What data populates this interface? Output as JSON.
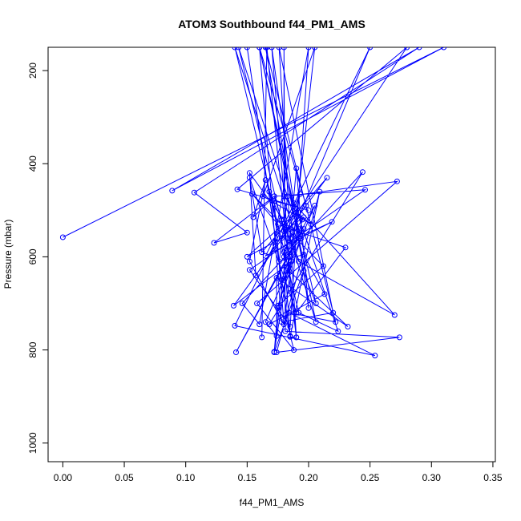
{
  "chart_data": {
    "type": "line",
    "title": "ATOM3 Southbound f44_PM1_AMS",
    "xlabel": "f44_PM1_AMS",
    "ylabel": "Pressure (mbar)",
    "xlim": [
      -0.012,
      0.352
    ],
    "ylim": [
      1040,
      150
    ],
    "y_reversed": true,
    "x_ticks": [
      0.0,
      0.05,
      0.1,
      0.15,
      0.2,
      0.25,
      0.3,
      0.35
    ],
    "x_tick_labels": [
      "0.00",
      "0.05",
      "0.10",
      "0.15",
      "0.20",
      "0.25",
      "0.30",
      "0.35"
    ],
    "y_ticks": [
      200,
      400,
      600,
      800,
      1000
    ],
    "y_tick_labels": [
      "200",
      "400",
      "600",
      "800",
      "1000"
    ],
    "grid": false,
    "series_color": "#0000FF",
    "marker": "open-circle",
    "series": [
      {
        "x": [
          0.0,
          0.31,
          0.089,
          0.29,
          0.107,
          0.15,
          0.123,
          0.172,
          0.155,
          0.165,
          0.152,
          0.18,
          0.172,
          0.2,
          0.142,
          0.28,
          0.157,
          0.152,
          0.185,
          0.23,
          0.19,
          0.152,
          0.162,
          0.215,
          0.178,
          0.15,
          0.19,
          0.202,
          0.163,
          0.205,
          0.181,
          0.188,
          0.158,
          0.272,
          0.183,
          0.176,
          0.196,
          0.213,
          0.168,
          0.244,
          0.146,
          0.16,
          0.2,
          0.185,
          0.152,
          0.246,
          0.172,
          0.178,
          0.186,
          0.139,
          0.198,
          0.16,
          0.206,
          0.18,
          0.165,
          0.219,
          0.19,
          0.14,
          0.184,
          0.232,
          0.174,
          0.174,
          0.165,
          0.205,
          0.141,
          0.196,
          0.18,
          0.168,
          0.192,
          0.27,
          0.188,
          0.224,
          0.192,
          0.175,
          0.154,
          0.212,
          0.175,
          0.194,
          0.143,
          0.185,
          0.178,
          0.15,
          0.185,
          0.18,
          0.25,
          0.14,
          0.254,
          0.184,
          0.222,
          0.165,
          0.196,
          0.172,
          0.175,
          0.195,
          0.18,
          0.18,
          0.181,
          0.274,
          0.174,
          0.209,
          0.185,
          0.19,
          0.183,
          0.19,
          0.2,
          0.17,
          0.183,
          0.172,
          0.193,
          0.18,
          0.196,
          0.185,
          0.206,
          0.192,
          0.16,
          0.178,
          0.22,
          0.176,
          0.19,
          0.166,
          0.162
        ],
        "y": [
          558,
          150,
          458,
          150,
          462,
          548,
          570,
          470,
          515,
          435,
          610,
          745,
          480,
          500,
          455,
          150,
          640,
          420,
          540,
          580,
          720,
          430,
          590,
          430,
          560,
          600,
          505,
          530,
          470,
          150,
          725,
          800,
          700,
          438,
          470,
          610,
          595,
          680,
          745,
          418,
          700,
          745,
          150,
          750,
          628,
          456,
          470,
          520,
          610,
          705,
          490,
          150,
          740,
          520,
          598,
          525,
          560,
          150,
          630,
          750,
          645,
          770,
          740,
          490,
          805,
          540,
          600,
          460,
          610,
          725,
          485,
          760,
          720,
          530,
          465,
          620,
          705,
          560,
          150,
          600,
          650,
          150,
          770,
          590,
          150,
          748,
          812,
          720,
          740,
          150,
          630,
          805,
          710,
          520,
          470,
          150,
          760,
          773,
          805,
          460,
          772,
          773,
          620,
          410,
          710,
          150,
          560,
          804,
          465,
          545,
          515,
          560,
          700,
          540,
          150,
          740,
          720,
          150,
          773,
          150,
          773
        ]
      }
    ]
  }
}
